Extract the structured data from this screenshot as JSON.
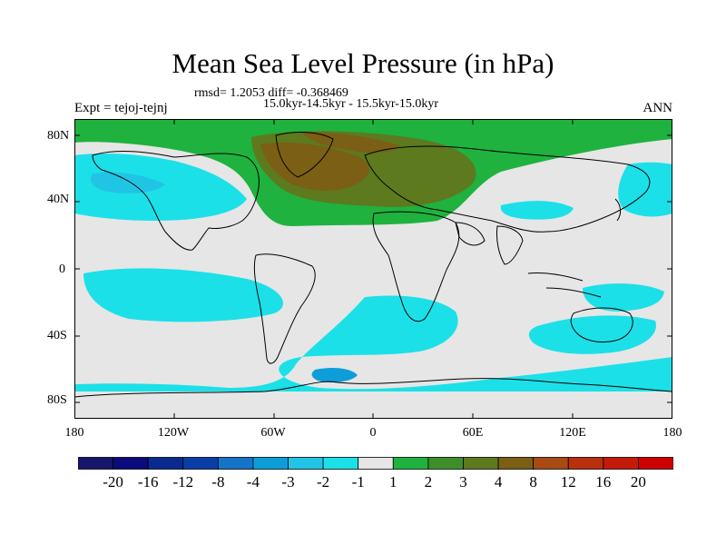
{
  "title": "Mean Sea Level Pressure (in hPa)",
  "stats_line": "rmsd= 1.2053 diff= -0.368469",
  "period_line": "15.0kyr-14.5kyr - 15.5kyr-15.0kyr",
  "experiment_label": "Expt = tejoj-tejnj",
  "season_label": "ANN",
  "lat_ticks": [
    "80N",
    "40N",
    "0",
    "40S",
    "80S"
  ],
  "lon_ticks": [
    "180",
    "120W",
    "60W",
    "0",
    "60E",
    "120E",
    "180"
  ],
  "colorbar": {
    "labels": [
      "-20",
      "-16",
      "-12",
      "-8",
      "-4",
      "-3",
      "-2",
      "-1",
      "1",
      "2",
      "3",
      "4",
      "8",
      "12",
      "16",
      "20"
    ],
    "colors": [
      "#16166a",
      "#0b0b7d",
      "#0a2a8f",
      "#0a3ea6",
      "#1573c8",
      "#0d9ed9",
      "#20c5e5",
      "#1ce0e8",
      "#e6e6e6",
      "#1fb23f",
      "#3e8f2a",
      "#5d7a1e",
      "#7a5f14",
      "#a84a14",
      "#b8300d",
      "#c41a0a",
      "#cc0000"
    ]
  },
  "colors": {
    "neutral": "#e6e6e6",
    "light_blue": "#1ce0e8",
    "blue": "#20c5e5",
    "mid_blue": "#0d9ed9",
    "green": "#1fb23f",
    "dark_green": "#3e8f2a",
    "olive": "#5d7a1e",
    "brown": "#7a5f14",
    "coast": "#000000"
  }
}
